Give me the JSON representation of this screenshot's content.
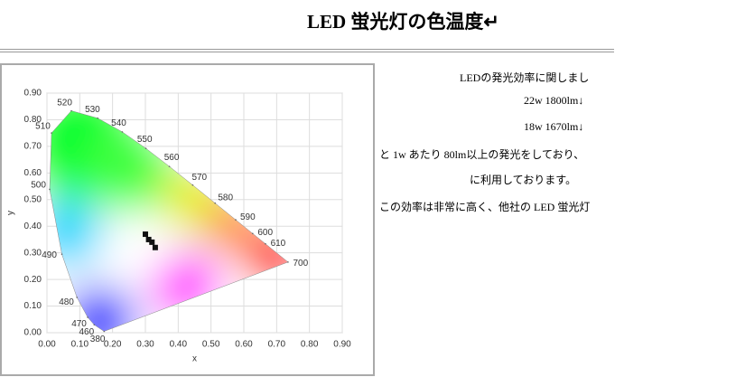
{
  "header": {
    "title": "LED 蛍光灯の色温度↵"
  },
  "figure": {
    "xlabel": "x",
    "ylabel": "y",
    "xlim": [
      0,
      0.9
    ],
    "ylim": [
      0,
      0.9
    ],
    "xticks": [
      {
        "value": 0,
        "label": "0.00"
      },
      {
        "value": 0.1,
        "label": "0.10"
      },
      {
        "value": 0.2,
        "label": "0.20"
      },
      {
        "value": 0.3,
        "label": "0.30"
      },
      {
        "value": 0.4,
        "label": "0.40"
      },
      {
        "value": 0.5,
        "label": "0.50"
      },
      {
        "value": 0.6,
        "label": "0.60"
      },
      {
        "value": 0.7,
        "label": "0.70"
      },
      {
        "value": 0.8,
        "label": "0.80"
      },
      {
        "value": 0.9,
        "label": "0.90"
      }
    ],
    "yticks": [
      {
        "value": 0,
        "label": "0.00"
      },
      {
        "value": 0.1,
        "label": "0.10"
      },
      {
        "value": 0.2,
        "label": "0.20"
      },
      {
        "value": 0.3,
        "label": "0.30"
      },
      {
        "value": 0.4,
        "label": "0.40"
      },
      {
        "value": 0.5,
        "label": "0.50"
      },
      {
        "value": 0.6,
        "label": "0.60"
      },
      {
        "value": 0.7,
        "label": "0.70"
      },
      {
        "value": 0.8,
        "label": "0.80"
      },
      {
        "value": 0.9,
        "label": "0.90"
      }
    ],
    "locus": [
      {
        "label": "380",
        "x": 0.1741,
        "y": 0.005
      },
      {
        "label": "460",
        "x": 0.144,
        "y": 0.0297
      },
      {
        "label": "470",
        "x": 0.1241,
        "y": 0.0578
      },
      {
        "label": "480",
        "x": 0.0913,
        "y": 0.1327
      },
      {
        "label": "490",
        "x": 0.0454,
        "y": 0.295
      },
      {
        "label": "500",
        "x": 0.0082,
        "y": 0.5384
      },
      {
        "label": "510",
        "x": 0.0139,
        "y": 0.7502
      },
      {
        "label": "520",
        "x": 0.0743,
        "y": 0.8338
      },
      {
        "label": "530",
        "x": 0.1547,
        "y": 0.8059
      },
      {
        "label": "540",
        "x": 0.2296,
        "y": 0.7543
      },
      {
        "label": "550",
        "x": 0.3016,
        "y": 0.6923
      },
      {
        "label": "560",
        "x": 0.3731,
        "y": 0.6245
      },
      {
        "label": "570",
        "x": 0.4441,
        "y": 0.5547
      },
      {
        "label": "580",
        "x": 0.5125,
        "y": 0.4866
      },
      {
        "label": "590",
        "x": 0.5752,
        "y": 0.4242
      },
      {
        "label": "600",
        "x": 0.627,
        "y": 0.3725
      },
      {
        "label": "610",
        "x": 0.6658,
        "y": 0.334
      },
      {
        "label": "700",
        "x": 0.7347,
        "y": 0.2653
      }
    ]
  },
  "body": {
    "lines": [
      "LEDの発光効率に関しまし",
      "22w 1800lm↓",
      "18w 1670lm↓",
      "と 1w あたり 80lm以上の発光をしており、",
      "に利用しております。",
      "この効率は非常に高く、他社の LED 蛍光灯"
    ]
  }
}
